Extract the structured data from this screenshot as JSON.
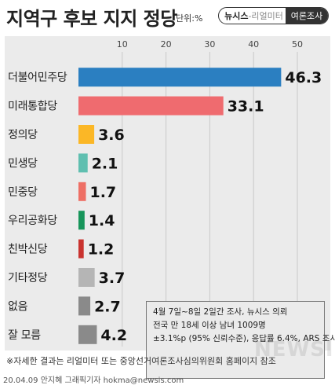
{
  "header": {
    "title": "지역구 후보 지지 정당",
    "unit": "단위:%",
    "brand_main": "뉴시스",
    "brand_sub": "-리얼미터",
    "brand_right": "여론조사"
  },
  "chart_data": {
    "type": "bar",
    "orientation": "horizontal",
    "categories": [
      "더불어민주당",
      "미래통합당",
      "정의당",
      "민생당",
      "민중당",
      "우리공화당",
      "친박신당",
      "기타정당",
      "없음",
      "잘 모름"
    ],
    "values": [
      46.3,
      33.1,
      3.6,
      2.1,
      1.7,
      1.4,
      1.2,
      3.7,
      2.7,
      4.2
    ],
    "value_labels": [
      "46.3",
      "33.1",
      "3.6",
      "2.1",
      "1.7",
      "1.4",
      "1.2",
      "3.7",
      "2.7",
      "4.2"
    ],
    "colors": [
      "#2b7fc1",
      "#ef6b6f",
      "#fbb726",
      "#5fbfb0",
      "#ee6f65",
      "#17955a",
      "#c9332f",
      "#b5b5b5",
      "#8a8a8a",
      "#8a8a8a"
    ],
    "xticks": [
      "10",
      "20",
      "30",
      "40",
      "50"
    ],
    "xtick_values": [
      10,
      20,
      30,
      40,
      50
    ],
    "xlim": [
      0,
      50
    ],
    "grid": true,
    "legend": "none"
  },
  "note": {
    "lines": [
      "4월 7일~8일 2일간 조사, 뉴시스 의뢰",
      "전국 만 18세 이상 남녀 1009명",
      "±3.1%p (95% 신뢰수준), 응답률 6.4%, ARS 조사"
    ]
  },
  "footnote": "※자세한 결과는 리얼미터 또는 중앙선거여론조사심의위원회 홈페이지 참조",
  "credit": "20.04.09 안지혜 그래픽기자 hokma@newsis.com",
  "watermark": "NEWSIS"
}
